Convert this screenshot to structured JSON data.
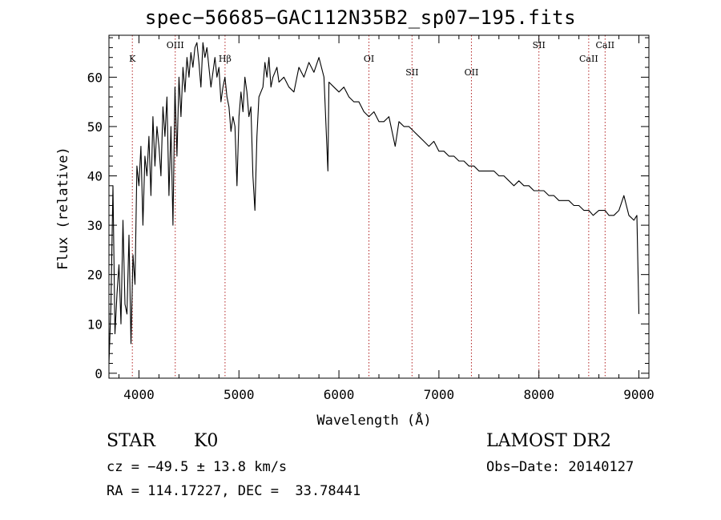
{
  "chart_data": {
    "type": "line",
    "title": "spec−56685−GAC112N35B2_sp07−195.fits",
    "xlabel": "Wavelength (Å)",
    "ylabel": "Flux (relative)",
    "xlim": [
      3700,
      9100
    ],
    "ylim": [
      -1,
      68.5
    ],
    "xticks": [
      4000,
      5000,
      6000,
      7000,
      8000,
      9000
    ],
    "yticks": [
      0,
      10,
      20,
      30,
      40,
      50,
      60
    ],
    "grid": false,
    "series": [
      {
        "x": [
          3700,
          3720,
          3740,
          3760,
          3780,
          3800,
          3820,
          3840,
          3860,
          3880,
          3900,
          3920,
          3940,
          3960,
          3980,
          4000,
          4020,
          4040,
          4060,
          4080,
          4100,
          4120,
          4140,
          4160,
          4180,
          4200,
          4220,
          4240,
          4260,
          4280,
          4300,
          4320,
          4340,
          4360,
          4380,
          4400,
          4420,
          4440,
          4460,
          4480,
          4500,
          4520,
          4540,
          4560,
          4580,
          4600,
          4620,
          4640,
          4660,
          4680,
          4700,
          4720,
          4740,
          4760,
          4780,
          4800,
          4820,
          4840,
          4860,
          4880,
          4900,
          4920,
          4940,
          4960,
          4980,
          5000,
          5020,
          5040,
          5060,
          5080,
          5100,
          5120,
          5140,
          5160,
          5180,
          5200,
          5220,
          5240,
          5260,
          5280,
          5300,
          5320,
          5340,
          5360,
          5380,
          5400,
          5450,
          5500,
          5550,
          5600,
          5650,
          5700,
          5750,
          5800,
          5850,
          5890,
          5900,
          5950,
          6000,
          6050,
          6100,
          6150,
          6200,
          6250,
          6300,
          6350,
          6400,
          6450,
          6500,
          6563,
          6600,
          6650,
          6700,
          6750,
          6800,
          6850,
          6900,
          6950,
          7000,
          7050,
          7100,
          7150,
          7200,
          7250,
          7300,
          7350,
          7400,
          7450,
          7500,
          7550,
          7600,
          7650,
          7700,
          7750,
          7800,
          7850,
          7900,
          7950,
          8000,
          8050,
          8100,
          8150,
          8200,
          8250,
          8300,
          8350,
          8400,
          8450,
          8500,
          8542,
          8600,
          8662,
          8700,
          8750,
          8800,
          8850,
          8900,
          8950,
          8980,
          9000
        ],
        "values": [
          2,
          14,
          38,
          8,
          16,
          22,
          10,
          31,
          14,
          12,
          28,
          6,
          24,
          18,
          42,
          38,
          46,
          30,
          44,
          40,
          48,
          36,
          52,
          42,
          50,
          46,
          40,
          54,
          48,
          56,
          36,
          50,
          30,
          58,
          44,
          60,
          52,
          62,
          57,
          64,
          60,
          65,
          62,
          66,
          67,
          63,
          58,
          67,
          64,
          66,
          62,
          58,
          61,
          64,
          60,
          62,
          55,
          58,
          60,
          56,
          54,
          49,
          52,
          50,
          38,
          52,
          57,
          53,
          60,
          57,
          52,
          54,
          40,
          33,
          48,
          56,
          57,
          58,
          63,
          60,
          64,
          58,
          60,
          61,
          62,
          59,
          60,
          58,
          57,
          62,
          60,
          63,
          61,
          64,
          60,
          41,
          59,
          58,
          57,
          58,
          56,
          55,
          55,
          53,
          52,
          53,
          51,
          51,
          52,
          46,
          51,
          50,
          50,
          49,
          48,
          47,
          46,
          47,
          45,
          45,
          44,
          44,
          43,
          43,
          42,
          42,
          41,
          41,
          41,
          41,
          40,
          40,
          39,
          38,
          39,
          38,
          38,
          37,
          37,
          37,
          36,
          36,
          35,
          35,
          35,
          34,
          34,
          33,
          33,
          32,
          33,
          33,
          32,
          32,
          33,
          36,
          32,
          31,
          32,
          12
        ]
      }
    ],
    "line_labels": [
      {
        "label": "K",
        "x": 3934
      },
      {
        "label": "OIII",
        "x": 4363
      },
      {
        "label": "Hβ",
        "x": 4861
      },
      {
        "label": "OI",
        "x": 6300
      },
      {
        "label": "SII",
        "x": 6731
      },
      {
        "label": "OII",
        "x": 7325
      },
      {
        "label": "SII",
        "x": 8000
      },
      {
        "label": "CaII",
        "x": 8498
      },
      {
        "label": "CaII",
        "x": 8662
      }
    ]
  },
  "info": {
    "class": "STAR",
    "subclass": "K0",
    "survey": "LAMOST DR2",
    "cz": "cz = −49.5 ± 13.8 km/s",
    "obs_date": "Obs−Date: 20140127",
    "radec": "RA = 114.17227, DEC =  33.78441"
  }
}
